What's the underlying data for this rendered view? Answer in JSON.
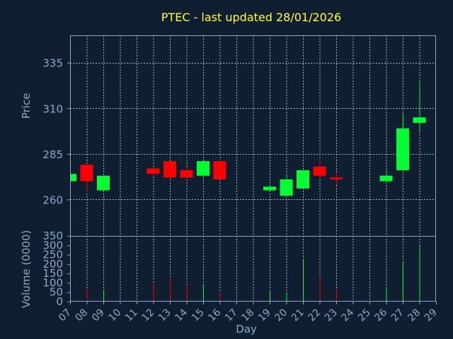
{
  "chart_data": {
    "type": "candlestick",
    "title": "PTEC - last updated 28/01/2026",
    "colors": {
      "background": "#0f1e30",
      "frame": "#8fa8c8",
      "grid": "#c8d2e0",
      "up": "#00ff33",
      "down": "#ff0000",
      "title": "#ffff33",
      "label": "#8fa8c8"
    },
    "price_panel": {
      "ylabel": "Price",
      "ylim": [
        240,
        350
      ],
      "yticks": [
        260,
        285,
        310,
        335
      ],
      "grid": true
    },
    "volume_panel": {
      "ylabel": "Volume (0000)",
      "ylim": [
        0,
        350
      ],
      "yticks": [
        0,
        50,
        100,
        150,
        200,
        250,
        300,
        350
      ]
    },
    "xlabel": "Day",
    "xlim": [
      7,
      29
    ],
    "x_ticks": [
      "07",
      "08",
      "09",
      "10",
      "11",
      "12",
      "13",
      "14",
      "15",
      "16",
      "17",
      "18",
      "19",
      "20",
      "21",
      "22",
      "23",
      "24",
      "25",
      "26",
      "27",
      "28",
      "29"
    ],
    "candles": [
      {
        "day": 7,
        "open": 270,
        "close": 274,
        "high": 275,
        "low": 270,
        "volume": 0
      },
      {
        "day": 8,
        "open": 279,
        "close": 270,
        "high": 279,
        "low": 264,
        "volume": 70
      },
      {
        "day": 9,
        "open": 265,
        "close": 273,
        "high": 273,
        "low": 265,
        "volume": 65
      },
      {
        "day": 12,
        "open": 277,
        "close": 274,
        "high": 278,
        "low": 273,
        "volume": 100
      },
      {
        "day": 13,
        "open": 281,
        "close": 272,
        "high": 281,
        "low": 272,
        "volume": 125
      },
      {
        "day": 14,
        "open": 276,
        "close": 272,
        "high": 278,
        "low": 272,
        "volume": 90
      },
      {
        "day": 15,
        "open": 273,
        "close": 281,
        "high": 281,
        "low": 273,
        "volume": 85
      },
      {
        "day": 16,
        "open": 281,
        "close": 271,
        "high": 282,
        "low": 271,
        "volume": 50
      },
      {
        "day": 19,
        "open": 265,
        "close": 267,
        "high": 268,
        "low": 264,
        "volume": 55
      },
      {
        "day": 20,
        "open": 262,
        "close": 271,
        "high": 274,
        "low": 262,
        "volume": 50
      },
      {
        "day": 21,
        "open": 266,
        "close": 276,
        "high": 276,
        "low": 266,
        "volume": 230
      },
      {
        "day": 22,
        "open": 278,
        "close": 273,
        "high": 282,
        "low": 271,
        "volume": 125
      },
      {
        "day": 23,
        "open": 272,
        "close": 271,
        "high": 275,
        "low": 268,
        "volume": 70
      },
      {
        "day": 26,
        "open": 270,
        "close": 273,
        "high": 276,
        "low": 269,
        "volume": 80
      },
      {
        "day": 27,
        "open": 276,
        "close": 299,
        "high": 307,
        "low": 276,
        "volume": 210
      },
      {
        "day": 28,
        "open": 302,
        "close": 305,
        "high": 325,
        "low": 297,
        "volume": 305
      }
    ]
  }
}
